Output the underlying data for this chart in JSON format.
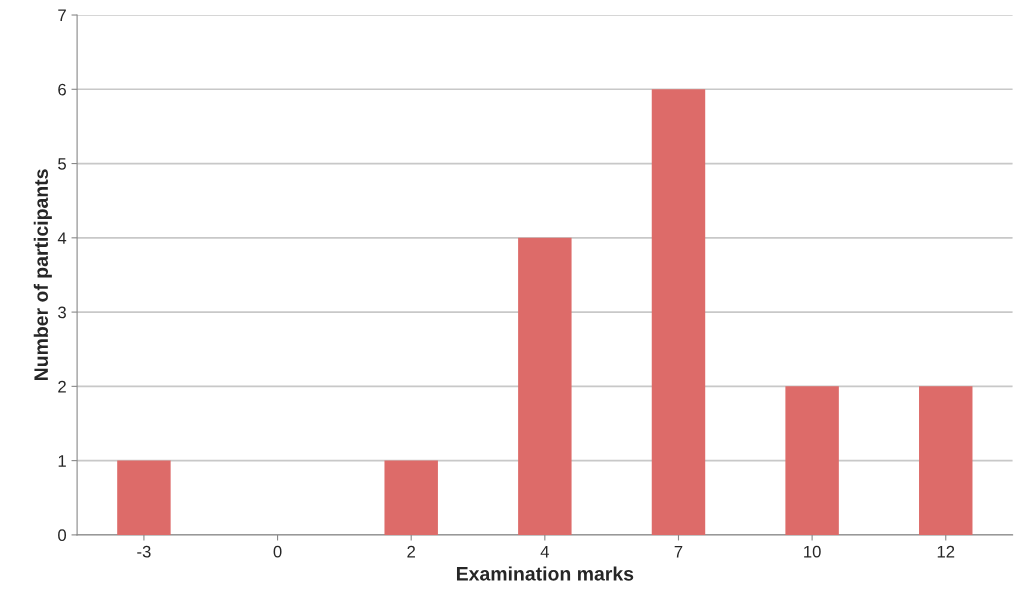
{
  "chart_data": {
    "type": "bar",
    "categories": [
      "-3",
      "0",
      "2",
      "4",
      "7",
      "10",
      "12"
    ],
    "values": [
      1,
      0,
      1,
      4,
      6,
      2,
      2
    ],
    "color": "#dd6b69",
    "xlabel": "Examination marks",
    "ylabel": "Number of participants",
    "ylim": [
      0,
      7
    ],
    "yticks": [
      0,
      1,
      2,
      3,
      4,
      5,
      6,
      7
    ],
    "grid": "y",
    "legend": false
  }
}
